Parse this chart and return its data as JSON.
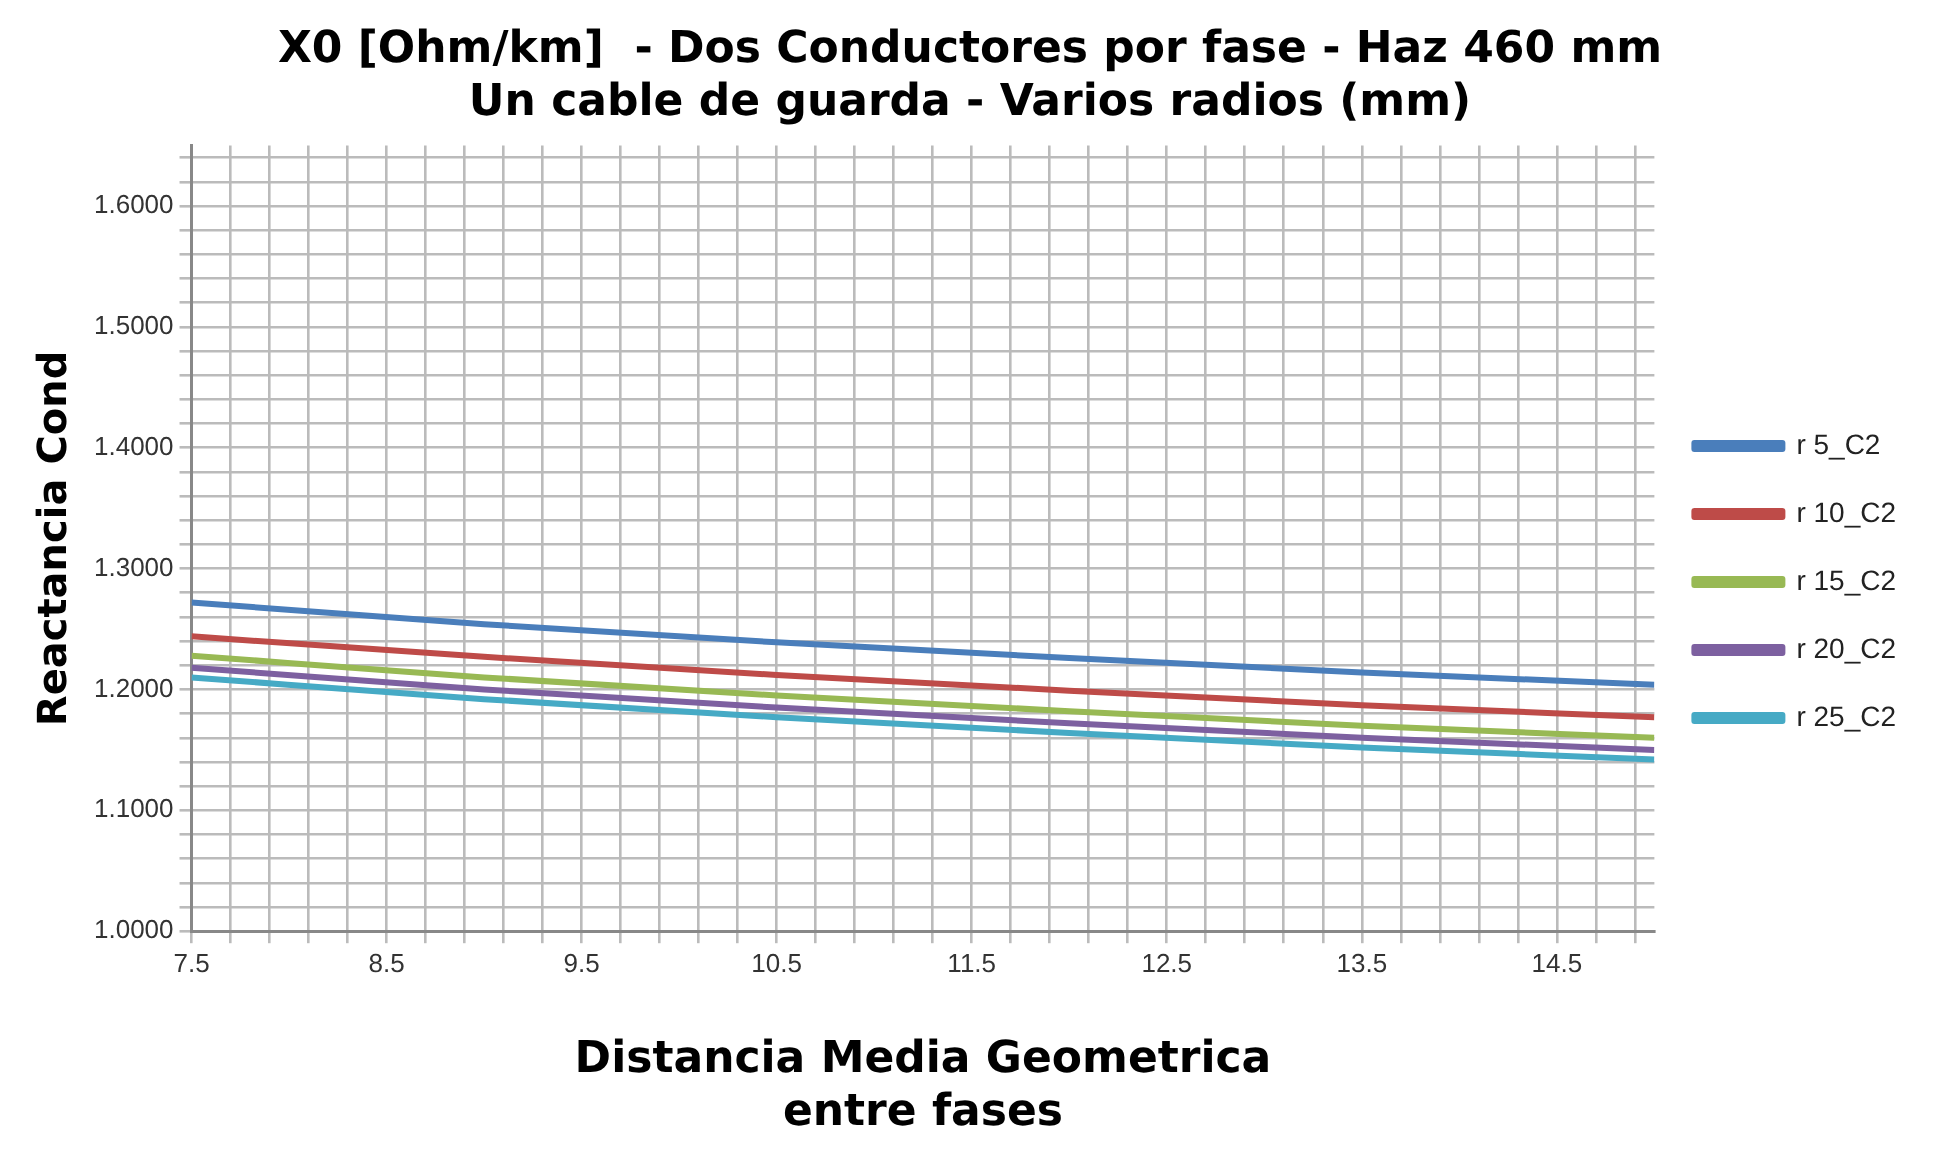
{
  "chart_data": {
    "type": "line",
    "title": "X0 [Ohm/km]  - Dos Conductores por fase - Haz 460 mm\nUn cable de guarda - Varios radios (mm)",
    "xlabel": "Distancia Media Geometrica\nentre fases",
    "ylabel": "Reactancia Cond",
    "x": [
      7.5,
      9,
      10.5,
      12,
      13.5,
      15
    ],
    "series": [
      {
        "name": "r 5_C2",
        "color": "#4a7ebb",
        "values": [
          1.272,
          1.254,
          1.239,
          1.226,
          1.214,
          1.204
        ]
      },
      {
        "name": "r 10_C2",
        "color": "#be4b48",
        "values": [
          1.244,
          1.227,
          1.212,
          1.199,
          1.187,
          1.177
        ]
      },
      {
        "name": "r 15_C2",
        "color": "#98b954",
        "values": [
          1.228,
          1.21,
          1.195,
          1.182,
          1.17,
          1.16
        ]
      },
      {
        "name": "r 20_C2",
        "color": "#7d60a0",
        "values": [
          1.218,
          1.2,
          1.185,
          1.172,
          1.16,
          1.15
        ]
      },
      {
        "name": "r 25_C2",
        "color": "#46aac5",
        "values": [
          1.21,
          1.192,
          1.177,
          1.164,
          1.152,
          1.142
        ]
      }
    ],
    "xlim": [
      7.5,
      15
    ],
    "xticks": [
      7.5,
      {
        "value": 7.7,
        "label": null
      },
      {
        "value": 7.9,
        "label": null
      },
      {
        "value": 8.1,
        "label": null
      },
      {
        "value": 8.3,
        "label": null
      },
      8.5,
      {
        "value": 8.7,
        "label": null
      },
      {
        "value": 8.9,
        "label": null
      },
      {
        "value": 9.1,
        "label": null
      },
      {
        "value": 9.3,
        "label": null
      },
      9.5,
      {
        "value": 9.7,
        "label": null
      },
      {
        "value": 9.9,
        "label": null
      },
      {
        "value": 10.1,
        "label": null
      },
      {
        "value": 10.3,
        "label": null
      },
      10.5,
      {
        "value": 10.7,
        "label": null
      },
      {
        "value": 10.9,
        "label": null
      },
      {
        "value": 11.1,
        "label": null
      },
      {
        "value": 11.3,
        "label": null
      },
      11.5,
      {
        "value": 11.7,
        "label": null
      },
      {
        "value": 11.9,
        "label": null
      },
      {
        "value": 12.1,
        "label": null
      },
      {
        "value": 12.3,
        "label": null
      },
      12.5,
      {
        "value": 12.7,
        "label": null
      },
      {
        "value": 12.9,
        "label": null
      },
      {
        "value": 13.1,
        "label": null
      },
      {
        "value": 13.3,
        "label": null
      },
      13.5,
      {
        "value": 13.7,
        "label": null
      },
      {
        "value": 13.9,
        "label": null
      },
      {
        "value": 14.1,
        "label": null
      },
      {
        "value": 14.3,
        "label": null
      },
      14.5,
      {
        "value": 14.7,
        "label": null
      },
      {
        "value": 14.9,
        "label": null
      }
    ],
    "ylim": [
      1,
      1.65
    ],
    "yticks": [
      {
        "value": 1,
        "label": "1.0000"
      },
      {
        "value": 1.02,
        "label": null
      },
      {
        "value": 1.04,
        "label": null
      },
      {
        "value": 1.06,
        "label": null
      },
      {
        "value": 1.08,
        "label": null
      },
      {
        "value": 1.1,
        "label": "1.1000"
      },
      {
        "value": 1.12,
        "label": null
      },
      {
        "value": 1.14,
        "label": null
      },
      {
        "value": 1.16,
        "label": null
      },
      {
        "value": 1.18,
        "label": null
      },
      {
        "value": 1.2,
        "label": "1.2000"
      },
      {
        "value": 1.22,
        "label": null
      },
      {
        "value": 1.24,
        "label": null
      },
      {
        "value": 1.26,
        "label": null
      },
      {
        "value": 1.28,
        "label": null
      },
      {
        "value": 1.3,
        "label": "1.3000"
      },
      {
        "value": 1.32,
        "label": null
      },
      {
        "value": 1.34,
        "label": null
      },
      {
        "value": 1.36,
        "label": null
      },
      {
        "value": 1.38,
        "label": null
      },
      {
        "value": 1.4,
        "label": "1.4000"
      },
      {
        "value": 1.42,
        "label": null
      },
      {
        "value": 1.44,
        "label": null
      },
      {
        "value": 1.46,
        "label": null
      },
      {
        "value": 1.48,
        "label": null
      },
      {
        "value": 1.5,
        "label": "1.5000"
      },
      {
        "value": 1.52,
        "label": null
      },
      {
        "value": 1.54,
        "label": null
      },
      {
        "value": 1.56,
        "label": null
      },
      {
        "value": 1.58,
        "label": null
      },
      {
        "value": 1.6,
        "label": "1.6000"
      },
      {
        "value": 1.62,
        "label": null
      },
      {
        "value": 1.64,
        "label": null
      }
    ],
    "grid": true,
    "legend": "right",
    "marker": "none",
    "line_style": "solid"
  }
}
